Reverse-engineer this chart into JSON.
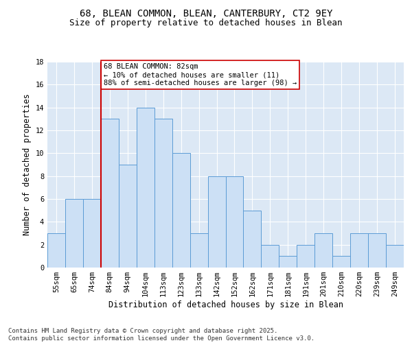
{
  "title_line1": "68, BLEAN COMMON, BLEAN, CANTERBURY, CT2 9EY",
  "title_line2": "Size of property relative to detached houses in Blean",
  "xlabel": "Distribution of detached houses by size in Blean",
  "ylabel": "Number of detached properties",
  "categories": [
    "55sqm",
    "65sqm",
    "74sqm",
    "84sqm",
    "94sqm",
    "104sqm",
    "113sqm",
    "123sqm",
    "133sqm",
    "142sqm",
    "152sqm",
    "162sqm",
    "171sqm",
    "181sqm",
    "191sqm",
    "201sqm",
    "210sqm",
    "220sqm",
    "239sqm",
    "249sqm"
  ],
  "values": [
    3,
    6,
    6,
    13,
    9,
    14,
    13,
    10,
    3,
    8,
    8,
    5,
    2,
    1,
    2,
    3,
    1,
    3,
    3,
    2
  ],
  "bar_color": "#cce0f5",
  "bar_edge_color": "#5b9bd5",
  "vline_x_index": 3,
  "vline_color": "#cc0000",
  "annotation_text": "68 BLEAN COMMON: 82sqm\n← 10% of detached houses are smaller (11)\n88% of semi-detached houses are larger (98) →",
  "annotation_box_color": "#ffffff",
  "annotation_box_edge": "#cc0000",
  "ylim": [
    0,
    18
  ],
  "yticks": [
    0,
    2,
    4,
    6,
    8,
    10,
    12,
    14,
    16,
    18
  ],
  "footer_text": "Contains HM Land Registry data © Crown copyright and database right 2025.\nContains public sector information licensed under the Open Government Licence v3.0.",
  "background_color": "#dce8f5",
  "grid_color": "#ffffff",
  "title_fontsize": 10,
  "subtitle_fontsize": 9,
  "axis_label_fontsize": 8.5,
  "tick_fontsize": 7.5,
  "annotation_fontsize": 7.5,
  "footer_fontsize": 6.5
}
